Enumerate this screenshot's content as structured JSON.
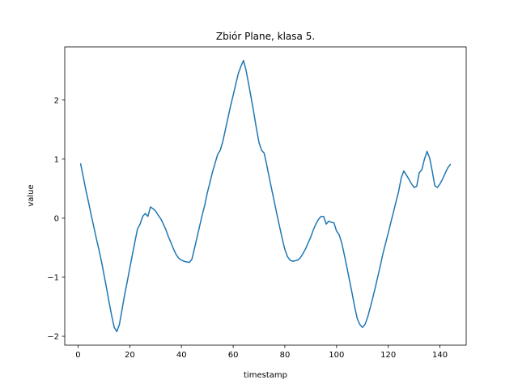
{
  "chart_data": {
    "type": "line",
    "title": "Zbiór Plane, klasa 5.",
    "xlabel": "timestamp",
    "ylabel": "value",
    "xlim": [
      -5.15,
      150.15
    ],
    "ylim": [
      -2.15,
      2.9
    ],
    "xticks": [
      0,
      20,
      40,
      60,
      80,
      100,
      120,
      140
    ],
    "yticks": [
      -2,
      -1,
      0,
      1,
      2
    ],
    "grid": false,
    "legend": "none",
    "series": [
      {
        "color": "#1f77b4",
        "x": [
          1,
          2,
          3,
          4,
          5,
          6,
          7,
          8,
          9,
          10,
          11,
          12,
          13,
          14,
          15,
          16,
          17,
          18,
          19,
          20,
          21,
          22,
          23,
          24,
          25,
          26,
          27,
          28,
          29,
          30,
          31,
          32,
          33,
          34,
          35,
          36,
          37,
          38,
          39,
          40,
          41,
          42,
          43,
          44,
          45,
          46,
          47,
          48,
          49,
          50,
          51,
          52,
          53,
          54,
          55,
          56,
          57,
          58,
          59,
          60,
          61,
          62,
          63,
          64,
          65,
          66,
          67,
          68,
          69,
          70,
          71,
          72,
          73,
          74,
          75,
          76,
          77,
          78,
          79,
          80,
          81,
          82,
          83,
          84,
          85,
          86,
          87,
          88,
          89,
          90,
          91,
          92,
          93,
          94,
          95,
          96,
          97,
          98,
          99,
          100,
          101,
          102,
          103,
          104,
          105,
          106,
          107,
          108,
          109,
          110,
          111,
          112,
          113,
          114,
          115,
          116,
          117,
          118,
          119,
          120,
          121,
          122,
          123,
          124,
          125,
          126,
          127,
          128,
          129,
          130,
          131,
          132,
          133,
          134,
          135,
          136,
          137,
          138,
          139,
          140,
          141,
          142,
          143,
          144
        ],
        "y": [
          0.92,
          0.7,
          0.48,
          0.28,
          0.07,
          -0.13,
          -0.33,
          -0.52,
          -0.72,
          -0.95,
          -1.18,
          -1.42,
          -1.65,
          -1.85,
          -1.92,
          -1.8,
          -1.55,
          -1.3,
          -1.08,
          -0.85,
          -0.62,
          -0.4,
          -0.18,
          -0.1,
          0.03,
          0.08,
          0.03,
          0.19,
          0.16,
          0.12,
          0.05,
          -0.01,
          -0.1,
          -0.2,
          -0.32,
          -0.42,
          -0.53,
          -0.62,
          -0.68,
          -0.71,
          -0.73,
          -0.74,
          -0.75,
          -0.7,
          -0.52,
          -0.33,
          -0.14,
          0.05,
          0.22,
          0.43,
          0.6,
          0.78,
          0.93,
          1.08,
          1.15,
          1.3,
          1.5,
          1.7,
          1.9,
          2.08,
          2.27,
          2.45,
          2.57,
          2.67,
          2.5,
          2.27,
          2.03,
          1.78,
          1.52,
          1.28,
          1.15,
          1.1,
          0.9,
          0.68,
          0.47,
          0.26,
          0.05,
          -0.15,
          -0.35,
          -0.53,
          -0.65,
          -0.71,
          -0.73,
          -0.72,
          -0.71,
          -0.67,
          -0.6,
          -0.52,
          -0.42,
          -0.32,
          -0.2,
          -0.1,
          -0.02,
          0.03,
          0.03,
          -0.1,
          -0.05,
          -0.07,
          -0.08,
          -0.22,
          -0.28,
          -0.42,
          -0.62,
          -0.83,
          -1.05,
          -1.27,
          -1.5,
          -1.7,
          -1.8,
          -1.85,
          -1.8,
          -1.68,
          -1.52,
          -1.35,
          -1.17,
          -0.98,
          -0.79,
          -0.59,
          -0.42,
          -0.25,
          -0.07,
          0.1,
          0.28,
          0.45,
          0.68,
          0.8,
          0.73,
          0.66,
          0.58,
          0.52,
          0.54,
          0.77,
          0.82,
          1.0,
          1.13,
          1.02,
          0.8,
          0.55,
          0.52,
          0.58,
          0.66,
          0.76,
          0.85,
          0.91
        ]
      }
    ]
  }
}
